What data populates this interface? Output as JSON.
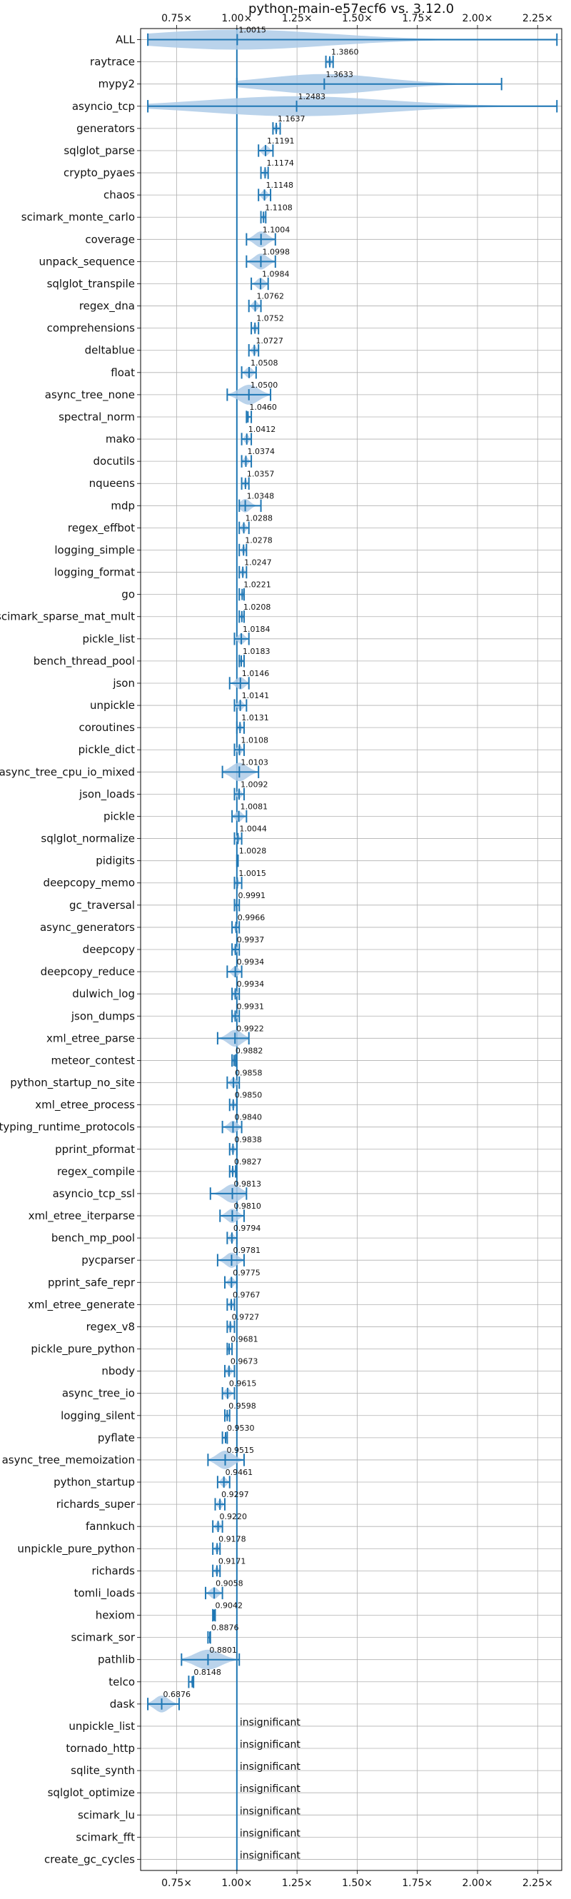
{
  "chart_data": {
    "type": "violin",
    "title": "python-main-e57ecf6 vs. 3.12.0",
    "xlabel": "",
    "ylabel": "",
    "xlim": [
      0.6,
      2.35
    ],
    "xticks": [
      0.75,
      1.0,
      1.25,
      1.5,
      1.75,
      2.0,
      2.25
    ],
    "xtick_labels": [
      "0.75×",
      "1.00×",
      "1.25×",
      "1.50×",
      "1.75×",
      "2.00×",
      "2.25×"
    ],
    "reference_line": 1.0,
    "grid": true,
    "colors": {
      "line": "#1f77b4",
      "fill": "#aecbe8",
      "grid": "#b0b0b0"
    },
    "insignificant_text": "insignificant",
    "benchmarks": [
      {
        "name": "ALL",
        "mean": 1.0015,
        "min": 0.63,
        "max": 2.33,
        "label": "1.0015"
      },
      {
        "name": "raytrace",
        "mean": 1.386,
        "min": 1.37,
        "max": 1.4,
        "label": "1.3860"
      },
      {
        "name": "mypy2",
        "mean": 1.3633,
        "min": 1.0,
        "max": 2.1,
        "label": "1.3633"
      },
      {
        "name": "asyncio_tcp",
        "mean": 1.2483,
        "min": 0.63,
        "max": 2.33,
        "label": "1.2483"
      },
      {
        "name": "generators",
        "mean": 1.1637,
        "min": 1.15,
        "max": 1.18,
        "label": "1.1637"
      },
      {
        "name": "sqlglot_parse",
        "mean": 1.1191,
        "min": 1.09,
        "max": 1.15,
        "label": "1.1191"
      },
      {
        "name": "crypto_pyaes",
        "mean": 1.1174,
        "min": 1.1,
        "max": 1.13,
        "label": "1.1174"
      },
      {
        "name": "chaos",
        "mean": 1.1148,
        "min": 1.09,
        "max": 1.14,
        "label": "1.1148"
      },
      {
        "name": "scimark_monte_carlo",
        "mean": 1.1108,
        "min": 1.1,
        "max": 1.12,
        "label": "1.1108"
      },
      {
        "name": "coverage",
        "mean": 1.1004,
        "min": 1.04,
        "max": 1.16,
        "label": "1.1004"
      },
      {
        "name": "unpack_sequence",
        "mean": 1.0998,
        "min": 1.04,
        "max": 1.16,
        "label": "1.0998"
      },
      {
        "name": "sqlglot_transpile",
        "mean": 1.0984,
        "min": 1.06,
        "max": 1.13,
        "label": "1.0984"
      },
      {
        "name": "regex_dna",
        "mean": 1.0762,
        "min": 1.05,
        "max": 1.1,
        "label": "1.0762"
      },
      {
        "name": "comprehensions",
        "mean": 1.0752,
        "min": 1.06,
        "max": 1.09,
        "label": "1.0752"
      },
      {
        "name": "deltablue",
        "mean": 1.0727,
        "min": 1.05,
        "max": 1.09,
        "label": "1.0727"
      },
      {
        "name": "float",
        "mean": 1.0508,
        "min": 1.02,
        "max": 1.08,
        "label": "1.0508"
      },
      {
        "name": "async_tree_none",
        "mean": 1.05,
        "min": 0.96,
        "max": 1.14,
        "label": "1.0500"
      },
      {
        "name": "spectral_norm",
        "mean": 1.046,
        "min": 1.04,
        "max": 1.06,
        "label": "1.0460"
      },
      {
        "name": "mako",
        "mean": 1.0412,
        "min": 1.02,
        "max": 1.06,
        "label": "1.0412"
      },
      {
        "name": "docutils",
        "mean": 1.0374,
        "min": 1.02,
        "max": 1.06,
        "label": "1.0374"
      },
      {
        "name": "nqueens",
        "mean": 1.0357,
        "min": 1.02,
        "max": 1.05,
        "label": "1.0357"
      },
      {
        "name": "mdp",
        "mean": 1.0348,
        "min": 1.01,
        "max": 1.1,
        "label": "1.0348"
      },
      {
        "name": "regex_effbot",
        "mean": 1.0288,
        "min": 1.01,
        "max": 1.05,
        "label": "1.0288"
      },
      {
        "name": "logging_simple",
        "mean": 1.0278,
        "min": 1.01,
        "max": 1.04,
        "label": "1.0278"
      },
      {
        "name": "logging_format",
        "mean": 1.0247,
        "min": 1.01,
        "max": 1.04,
        "label": "1.0247"
      },
      {
        "name": "go",
        "mean": 1.0221,
        "min": 1.01,
        "max": 1.03,
        "label": "1.0221"
      },
      {
        "name": "scimark_sparse_mat_mult",
        "mean": 1.0208,
        "min": 1.01,
        "max": 1.03,
        "label": "1.0208"
      },
      {
        "name": "pickle_list",
        "mean": 1.0184,
        "min": 0.99,
        "max": 1.05,
        "label": "1.0184"
      },
      {
        "name": "bench_thread_pool",
        "mean": 1.0183,
        "min": 1.01,
        "max": 1.03,
        "label": "1.0183"
      },
      {
        "name": "json",
        "mean": 1.0146,
        "min": 0.97,
        "max": 1.05,
        "label": "1.0146"
      },
      {
        "name": "unpickle",
        "mean": 1.0141,
        "min": 0.99,
        "max": 1.04,
        "label": "1.0141"
      },
      {
        "name": "coroutines",
        "mean": 1.0131,
        "min": 1.0,
        "max": 1.03,
        "label": "1.0131"
      },
      {
        "name": "pickle_dict",
        "mean": 1.0108,
        "min": 0.99,
        "max": 1.03,
        "label": "1.0108"
      },
      {
        "name": "async_tree_cpu_io_mixed",
        "mean": 1.0103,
        "min": 0.94,
        "max": 1.09,
        "label": "1.0103"
      },
      {
        "name": "json_loads",
        "mean": 1.0092,
        "min": 0.99,
        "max": 1.03,
        "label": "1.0092"
      },
      {
        "name": "pickle",
        "mean": 1.0081,
        "min": 0.98,
        "max": 1.04,
        "label": "1.0081"
      },
      {
        "name": "sqlglot_normalize",
        "mean": 1.0044,
        "min": 0.99,
        "max": 1.02,
        "label": "1.0044"
      },
      {
        "name": "pidigits",
        "mean": 1.0028,
        "min": 1.0,
        "max": 1.005,
        "label": "1.0028"
      },
      {
        "name": "deepcopy_memo",
        "mean": 1.0015,
        "min": 0.99,
        "max": 1.02,
        "label": "1.0015"
      },
      {
        "name": "gc_traversal",
        "mean": 0.9991,
        "min": 0.99,
        "max": 1.01,
        "label": "0.9991"
      },
      {
        "name": "async_generators",
        "mean": 0.9966,
        "min": 0.98,
        "max": 1.01,
        "label": "0.9966"
      },
      {
        "name": "deepcopy",
        "mean": 0.9937,
        "min": 0.98,
        "max": 1.01,
        "label": "0.9937"
      },
      {
        "name": "deepcopy_reduce",
        "mean": 0.9934,
        "min": 0.96,
        "max": 1.02,
        "label": "0.9934"
      },
      {
        "name": "dulwich_log",
        "mean": 0.9934,
        "min": 0.98,
        "max": 1.01,
        "label": "0.9934"
      },
      {
        "name": "json_dumps",
        "mean": 0.9931,
        "min": 0.98,
        "max": 1.01,
        "label": "0.9931"
      },
      {
        "name": "xml_etree_parse",
        "mean": 0.9922,
        "min": 0.92,
        "max": 1.05,
        "label": "0.9922"
      },
      {
        "name": "meteor_contest",
        "mean": 0.9882,
        "min": 0.98,
        "max": 0.995,
        "label": "0.9882"
      },
      {
        "name": "python_startup_no_site",
        "mean": 0.9858,
        "min": 0.96,
        "max": 1.01,
        "label": "0.9858"
      },
      {
        "name": "xml_etree_process",
        "mean": 0.985,
        "min": 0.97,
        "max": 1.0,
        "label": "0.9850"
      },
      {
        "name": "typing_runtime_protocols",
        "mean": 0.984,
        "min": 0.94,
        "max": 1.02,
        "label": "0.9840"
      },
      {
        "name": "pprint_pformat",
        "mean": 0.9838,
        "min": 0.97,
        "max": 1.0,
        "label": "0.9838"
      },
      {
        "name": "regex_compile",
        "mean": 0.9827,
        "min": 0.97,
        "max": 0.995,
        "label": "0.9827"
      },
      {
        "name": "asyncio_tcp_ssl",
        "mean": 0.9813,
        "min": 0.89,
        "max": 1.04,
        "label": "0.9813"
      },
      {
        "name": "xml_etree_iterparse",
        "mean": 0.981,
        "min": 0.93,
        "max": 1.03,
        "label": "0.9810"
      },
      {
        "name": "bench_mp_pool",
        "mean": 0.9794,
        "min": 0.96,
        "max": 1.0,
        "label": "0.9794"
      },
      {
        "name": "pycparser",
        "mean": 0.9781,
        "min": 0.92,
        "max": 1.03,
        "label": "0.9781"
      },
      {
        "name": "pprint_safe_repr",
        "mean": 0.9775,
        "min": 0.95,
        "max": 1.0,
        "label": "0.9775"
      },
      {
        "name": "xml_etree_generate",
        "mean": 0.9767,
        "min": 0.96,
        "max": 0.99,
        "label": "0.9767"
      },
      {
        "name": "regex_v8",
        "mean": 0.9727,
        "min": 0.96,
        "max": 0.99,
        "label": "0.9727"
      },
      {
        "name": "pickle_pure_python",
        "mean": 0.9681,
        "min": 0.96,
        "max": 0.98,
        "label": "0.9681"
      },
      {
        "name": "nbody",
        "mean": 0.9673,
        "min": 0.95,
        "max": 0.99,
        "label": "0.9673"
      },
      {
        "name": "async_tree_io",
        "mean": 0.9615,
        "min": 0.94,
        "max": 0.99,
        "label": "0.9615"
      },
      {
        "name": "logging_silent",
        "mean": 0.9598,
        "min": 0.95,
        "max": 0.97,
        "label": "0.9598"
      },
      {
        "name": "pyflate",
        "mean": 0.953,
        "min": 0.94,
        "max": 0.96,
        "label": "0.9530"
      },
      {
        "name": "async_tree_memoization",
        "mean": 0.9515,
        "min": 0.88,
        "max": 1.03,
        "label": "0.9515"
      },
      {
        "name": "python_startup",
        "mean": 0.9461,
        "min": 0.92,
        "max": 0.97,
        "label": "0.9461"
      },
      {
        "name": "richards_super",
        "mean": 0.9297,
        "min": 0.91,
        "max": 0.95,
        "label": "0.9297"
      },
      {
        "name": "fannkuch",
        "mean": 0.922,
        "min": 0.9,
        "max": 0.94,
        "label": "0.9220"
      },
      {
        "name": "unpickle_pure_python",
        "mean": 0.9178,
        "min": 0.9,
        "max": 0.93,
        "label": "0.9178"
      },
      {
        "name": "richards",
        "mean": 0.9171,
        "min": 0.9,
        "max": 0.93,
        "label": "0.9171"
      },
      {
        "name": "tomli_loads",
        "mean": 0.9058,
        "min": 0.87,
        "max": 0.94,
        "label": "0.9058"
      },
      {
        "name": "hexiom",
        "mean": 0.9042,
        "min": 0.9,
        "max": 0.91,
        "label": "0.9042"
      },
      {
        "name": "scimark_sor",
        "mean": 0.8876,
        "min": 0.88,
        "max": 0.89,
        "label": "0.8876"
      },
      {
        "name": "pathlib",
        "mean": 0.8801,
        "min": 0.77,
        "max": 1.01,
        "label": "0.8801"
      },
      {
        "name": "telco",
        "mean": 0.8148,
        "min": 0.8,
        "max": 0.82,
        "label": "0.8148"
      },
      {
        "name": "dask",
        "mean": 0.6876,
        "min": 0.63,
        "max": 0.76,
        "label": "0.6876"
      },
      {
        "name": "unpickle_list",
        "insignificant": true
      },
      {
        "name": "tornado_http",
        "insignificant": true
      },
      {
        "name": "sqlite_synth",
        "insignificant": true
      },
      {
        "name": "sqlglot_optimize",
        "insignificant": true
      },
      {
        "name": "scimark_lu",
        "insignificant": true
      },
      {
        "name": "scimark_fft",
        "insignificant": true
      },
      {
        "name": "create_gc_cycles",
        "insignificant": true
      }
    ]
  }
}
